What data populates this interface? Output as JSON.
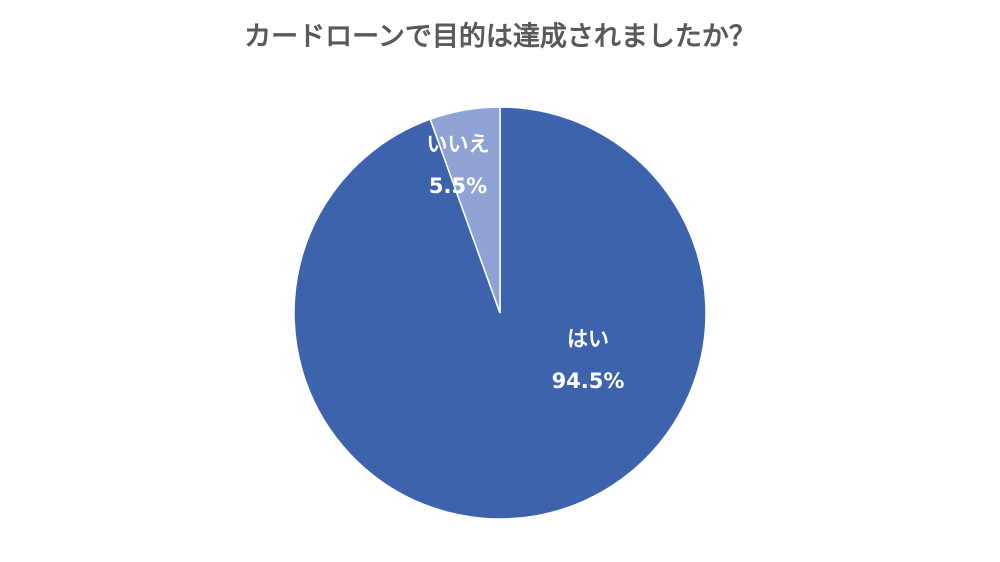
{
  "chart_data": {
    "type": "pie",
    "title": "カードローンで目的は達成されましたか？",
    "categories": [
      "はい",
      "いいえ"
    ],
    "values": [
      94.5,
      5.5
    ],
    "value_labels": [
      "94.5%",
      "5.5%"
    ],
    "colors": [
      "#3d63ac",
      "#8fa3d5"
    ]
  }
}
